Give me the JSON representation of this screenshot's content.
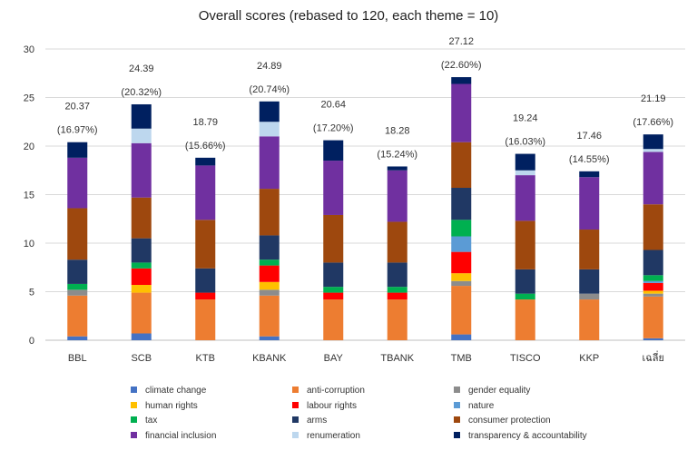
{
  "chart_data": {
    "type": "bar",
    "stacked": true,
    "title": "Overall scores (rebased to 120, each theme = 10)",
    "xlabel": "",
    "ylabel": "",
    "ylim": [
      0,
      30
    ],
    "yticks": [
      0,
      5,
      10,
      15,
      20,
      25,
      30
    ],
    "grid": true,
    "legend_position": "bottom",
    "categories": [
      "BBL",
      "SCB",
      "KTB",
      "KBANK",
      "BAY",
      "TBANK",
      "TMB",
      "TISCO",
      "KKP",
      "เฉลี่ย"
    ],
    "totals": [
      "20.37",
      "24.39",
      "18.79",
      "24.89",
      "20.64",
      "18.28",
      "27.12",
      "19.24",
      "17.46",
      "21.19"
    ],
    "percents": [
      "(16.97%)",
      "(20.32%)",
      "(15.66%)",
      "(20.74%)",
      "(17.20%)",
      "(15.24%)",
      "(22.60%)",
      "(16.03%)",
      "(14.55%)",
      "(17.66%)"
    ],
    "series": [
      {
        "name": "climate change",
        "color": "#4472c4",
        "values": [
          0.4,
          0.7,
          0,
          0.4,
          0,
          0,
          0.6,
          0,
          0,
          0.2
        ]
      },
      {
        "name": "anti-corruption",
        "color": "#ed7d31",
        "values": [
          4.2,
          4.2,
          4.2,
          4.2,
          4.2,
          4.2,
          5.0,
          4.2,
          4.2,
          4.3
        ]
      },
      {
        "name": "gender equality",
        "color": "#8c8c8c",
        "values": [
          0.6,
          0,
          0,
          0.6,
          0,
          0,
          0.5,
          0,
          0.6,
          0.3
        ]
      },
      {
        "name": "human rights",
        "color": "#ffc000",
        "values": [
          0,
          0.8,
          0,
          0.8,
          0,
          0,
          0.8,
          0,
          0,
          0.3
        ]
      },
      {
        "name": "labour rights",
        "color": "#ff0000",
        "values": [
          0,
          1.7,
          0.7,
          1.7,
          0.7,
          0.7,
          2.2,
          0,
          0,
          0.8
        ]
      },
      {
        "name": "nature",
        "color": "#5b9bd5",
        "values": [
          0,
          0,
          0,
          0,
          0,
          0,
          1.6,
          0,
          0,
          0.2
        ]
      },
      {
        "name": "tax",
        "color": "#00b050",
        "values": [
          0.6,
          0.6,
          0,
          0.6,
          0.6,
          0.6,
          1.7,
          0.6,
          0,
          0.6
        ]
      },
      {
        "name": "arms",
        "color": "#203864",
        "values": [
          2.5,
          2.5,
          2.5,
          2.5,
          2.5,
          2.5,
          3.3,
          2.5,
          2.5,
          2.6
        ]
      },
      {
        "name": "consumer protection",
        "color": "#9e480e",
        "values": [
          5.3,
          4.2,
          5.0,
          4.8,
          4.9,
          4.2,
          4.7,
          5.0,
          4.1,
          4.7
        ]
      },
      {
        "name": "financial inclusion",
        "color": "#7030a0",
        "values": [
          5.2,
          5.6,
          5.6,
          5.4,
          5.6,
          5.3,
          6.0,
          4.7,
          5.4,
          5.4
        ]
      },
      {
        "name": "renumeration",
        "color": "#bdd7ee",
        "values": [
          0,
          1.5,
          0,
          1.5,
          0,
          0,
          0,
          0.5,
          0,
          0.3
        ]
      },
      {
        "name": "transparency & accountability",
        "color": "#002060",
        "values": [
          1.6,
          2.5,
          0.8,
          2.1,
          2.1,
          0.4,
          0.7,
          1.7,
          0.6,
          1.5
        ]
      }
    ]
  }
}
